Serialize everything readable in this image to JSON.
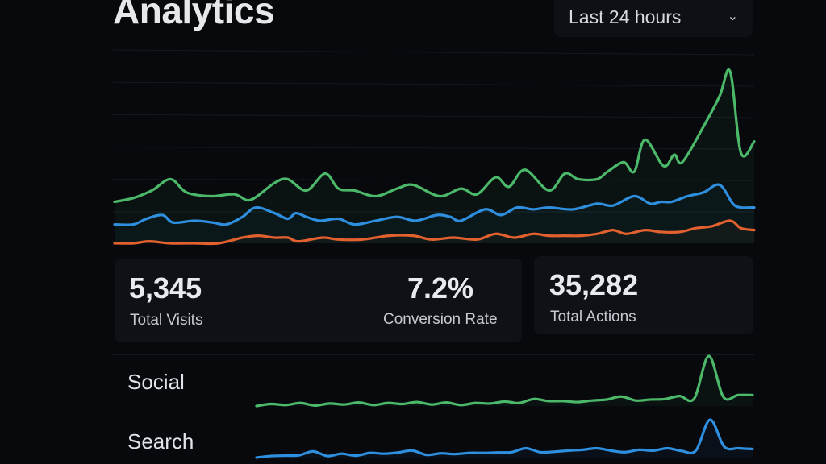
{
  "header": {
    "title": "Analytics",
    "range_select": {
      "value": "Last 24 hours",
      "icon": "chevron-down-icon"
    }
  },
  "stats": [
    {
      "value": "5,345",
      "label": "Total Visits"
    },
    {
      "value": "7.2%",
      "label": "Conversion Rate"
    },
    {
      "value": "35,282",
      "label": "Total Actions"
    }
  ],
  "rows": [
    {
      "label": "Social"
    },
    {
      "label": "Search"
    }
  ],
  "colors": {
    "green": "#4cb86a",
    "blue": "#2f8fdf",
    "orange": "#e3602f",
    "background": "#07090d",
    "card": "#0e1116"
  },
  "chart_data": [
    {
      "type": "line",
      "title": "",
      "xlabel": "",
      "ylabel": "",
      "xlim": [
        0,
        24
      ],
      "ylim": [
        0,
        100
      ],
      "grid": true,
      "series": [
        {
          "name": "green",
          "color": "#4cb86a",
          "x": [
            0,
            0.7,
            1.4,
            2.1,
            2.7,
            3.6,
            4.5,
            5.1,
            6.0,
            6.5,
            7.2,
            7.9,
            8.4,
            9.0,
            9.8,
            10.6,
            11.2,
            12.2,
            13.0,
            13.6,
            14.3,
            14.8,
            15.4,
            16.3,
            16.9,
            17.4,
            18.1,
            18.5,
            19.1,
            19.5,
            19.9,
            20.6,
            21.0,
            21.3,
            22.1,
            22.7,
            23.1,
            23.5,
            24
          ],
          "y": [
            22,
            24,
            28,
            34,
            27,
            25,
            26,
            23,
            32,
            34,
            28,
            37,
            29,
            28,
            25,
            29,
            31,
            25,
            29,
            26,
            35,
            30,
            39,
            28,
            37,
            34,
            34,
            38,
            43,
            38,
            55,
            41,
            47,
            43,
            62,
            78,
            91,
            48,
            54
          ]
        },
        {
          "name": "blue",
          "color": "#2f8fdf",
          "x": [
            0,
            0.7,
            1.2,
            1.8,
            2.2,
            3.0,
            3.7,
            4.2,
            4.8,
            5.3,
            6.0,
            6.5,
            6.8,
            7.2,
            7.7,
            8.4,
            9.0,
            9.8,
            10.6,
            11.3,
            12.1,
            12.6,
            13.0,
            13.9,
            14.5,
            15.1,
            15.7,
            16.3,
            17.2,
            18.1,
            18.7,
            19.5,
            20.1,
            20.5,
            20.9,
            21.5,
            22.1,
            22.7,
            23.2,
            23.5,
            24
          ],
          "y": [
            10,
            10,
            13,
            15,
            11,
            12,
            11,
            10,
            14,
            19,
            16,
            13,
            16,
            14,
            12,
            13,
            10,
            12,
            14,
            12,
            15,
            14,
            12,
            18,
            15,
            19,
            18,
            19,
            18,
            21,
            20,
            25,
            21,
            22,
            22,
            25,
            27,
            31,
            21,
            19,
            19
          ]
        },
        {
          "name": "orange",
          "color": "#e3602f",
          "x": [
            0,
            0.7,
            1.3,
            2.1,
            3.0,
            3.9,
            4.8,
            5.4,
            6.0,
            6.5,
            6.9,
            7.8,
            8.4,
            9.3,
            10.3,
            11.2,
            11.9,
            12.7,
            13.6,
            14.3,
            15.0,
            15.7,
            16.3,
            16.9,
            17.5,
            18.1,
            18.7,
            19.2,
            19.9,
            20.5,
            21.2,
            21.8,
            22.4,
            23.1,
            23.5,
            24
          ],
          "y": [
            0,
            0,
            1,
            0,
            0,
            0,
            3,
            4,
            3,
            3,
            1,
            3,
            2,
            2,
            4,
            4,
            2,
            3,
            2,
            5,
            3,
            5,
            4,
            4,
            4,
            5,
            7,
            5,
            7,
            6,
            6,
            8,
            9,
            12,
            8,
            7
          ]
        }
      ]
    },
    {
      "type": "line",
      "title": "Social",
      "ylim": [
        0,
        100
      ],
      "series": [
        {
          "name": "Social",
          "color": "#4cb86a",
          "y": [
            0,
            4,
            2,
            6,
            1,
            5,
            3,
            7,
            2,
            6,
            4,
            8,
            3,
            7,
            2,
            6,
            5,
            9,
            6,
            14,
            10,
            10,
            8,
            11,
            13,
            19,
            11,
            13,
            14,
            20,
            15,
            100,
            18,
            22,
            22
          ]
        }
      ]
    },
    {
      "type": "line",
      "title": "Search",
      "ylim": [
        0,
        100
      ],
      "series": [
        {
          "name": "Search",
          "color": "#2f8fdf",
          "y": [
            0,
            4,
            5,
            6,
            16,
            4,
            10,
            5,
            12,
            10,
            13,
            18,
            7,
            11,
            9,
            12,
            12,
            13,
            14,
            24,
            14,
            15,
            18,
            20,
            24,
            18,
            14,
            20,
            18,
            24,
            17,
            18,
            98,
            28,
            24,
            22
          ]
        }
      ]
    }
  ]
}
